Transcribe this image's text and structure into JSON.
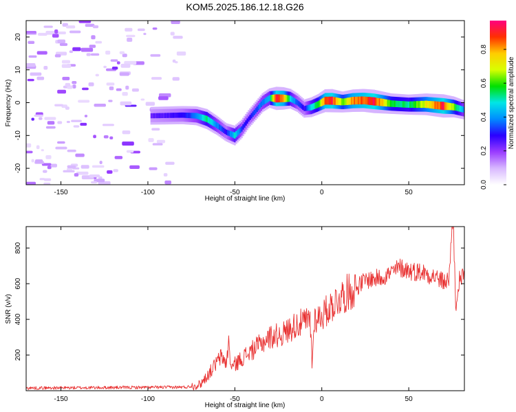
{
  "title": "KOM5.2025.186.12.18.G26",
  "chart_data": [
    {
      "type": "heatmap",
      "xlabel": "Height of straight line (km)",
      "ylabel": "Frequency (Hz)",
      "xlim": [
        -170,
        82
      ],
      "ylim": [
        -25,
        25
      ],
      "xticks": [
        -150,
        -100,
        -50,
        0,
        50
      ],
      "yticks": [
        -20,
        -10,
        0,
        10,
        20
      ],
      "colorbar": {
        "label": "Normalized spectral amplitude",
        "range": [
          0,
          0.97
        ],
        "ticks": [
          0.0,
          0.2,
          0.4,
          0.6,
          0.8
        ],
        "colormap": [
          "#ffffff",
          "#d8b8ff",
          "#9a3cff",
          "#2a00ff",
          "#008cff",
          "#00e6e6",
          "#00e000",
          "#d8ff00",
          "#ffcc00",
          "#ff3000",
          "#ff007f"
        ]
      },
      "ridge": {
        "x": [
          -98,
          -80,
          -72,
          -66,
          -60,
          -55,
          -50,
          -46,
          -42,
          -38,
          -34,
          -30,
          -26,
          -22,
          -18,
          -14,
          -10,
          -6,
          -2,
          2,
          6,
          12,
          18,
          24,
          30,
          40,
          50,
          60,
          70,
          76,
          82
        ],
        "frequency": [
          -4,
          -3.8,
          -4,
          -5,
          -7,
          -9,
          -10,
          -8,
          -5,
          -2.5,
          0,
          1.4,
          1.3,
          1.3,
          1.2,
          0,
          -1.8,
          -1.4,
          -0.5,
          0.6,
          0.6,
          0.2,
          0.6,
          0.7,
          0.4,
          -0.3,
          -0.6,
          -0.5,
          -1.0,
          -1.3,
          -2.2
        ],
        "amplitude": [
          0.25,
          0.3,
          0.4,
          0.55,
          0.4,
          0.3,
          0.5,
          0.35,
          0.3,
          0.35,
          0.4,
          0.45,
          0.95,
          0.85,
          0.5,
          0.35,
          0.3,
          0.5,
          0.6,
          0.9,
          0.95,
          0.65,
          0.85,
          0.9,
          0.97,
          0.6,
          0.55,
          0.75,
          0.95,
          0.65,
          0.4
        ]
      },
      "noise": {
        "x_range": [
          -170,
          -80
        ],
        "amplitude_range": [
          0.05,
          0.25
        ]
      }
    },
    {
      "type": "line",
      "xlabel": "Height of straight line (km)",
      "ylabel": "SNR (v/v)",
      "xlim": [
        -170,
        82
      ],
      "ylim": [
        0,
        920
      ],
      "xticks": [
        -150,
        -100,
        -50,
        0,
        50
      ],
      "yticks": [
        200,
        400,
        600,
        800
      ],
      "series": [
        {
          "color": "#e83030",
          "trend": {
            "x": [
              -170,
              -78,
              -70,
              -65,
              -58,
              -52,
              -45,
              -38,
              -30,
              -22,
              -15,
              -8,
              0,
              10,
              20,
              25,
              32,
              38,
              45,
              52,
              58,
              65,
              70,
              73,
              75,
              77,
              79,
              82
            ],
            "y": [
              15,
              20,
              35,
              95,
              190,
              130,
              190,
              240,
              300,
              320,
              370,
              390,
              420,
              520,
              580,
              620,
              630,
              650,
              690,
              670,
              665,
              640,
              610,
              620,
              900,
              520,
              620,
              640
            ]
          },
          "spikes": [
            {
              "x": -53.5,
              "y": 280
            },
            {
              "x": -5.5,
              "y": 150
            },
            {
              "x": 75.6,
              "y": 940
            },
            {
              "x": 77.8,
              "y": 470
            }
          ]
        }
      ]
    }
  ]
}
